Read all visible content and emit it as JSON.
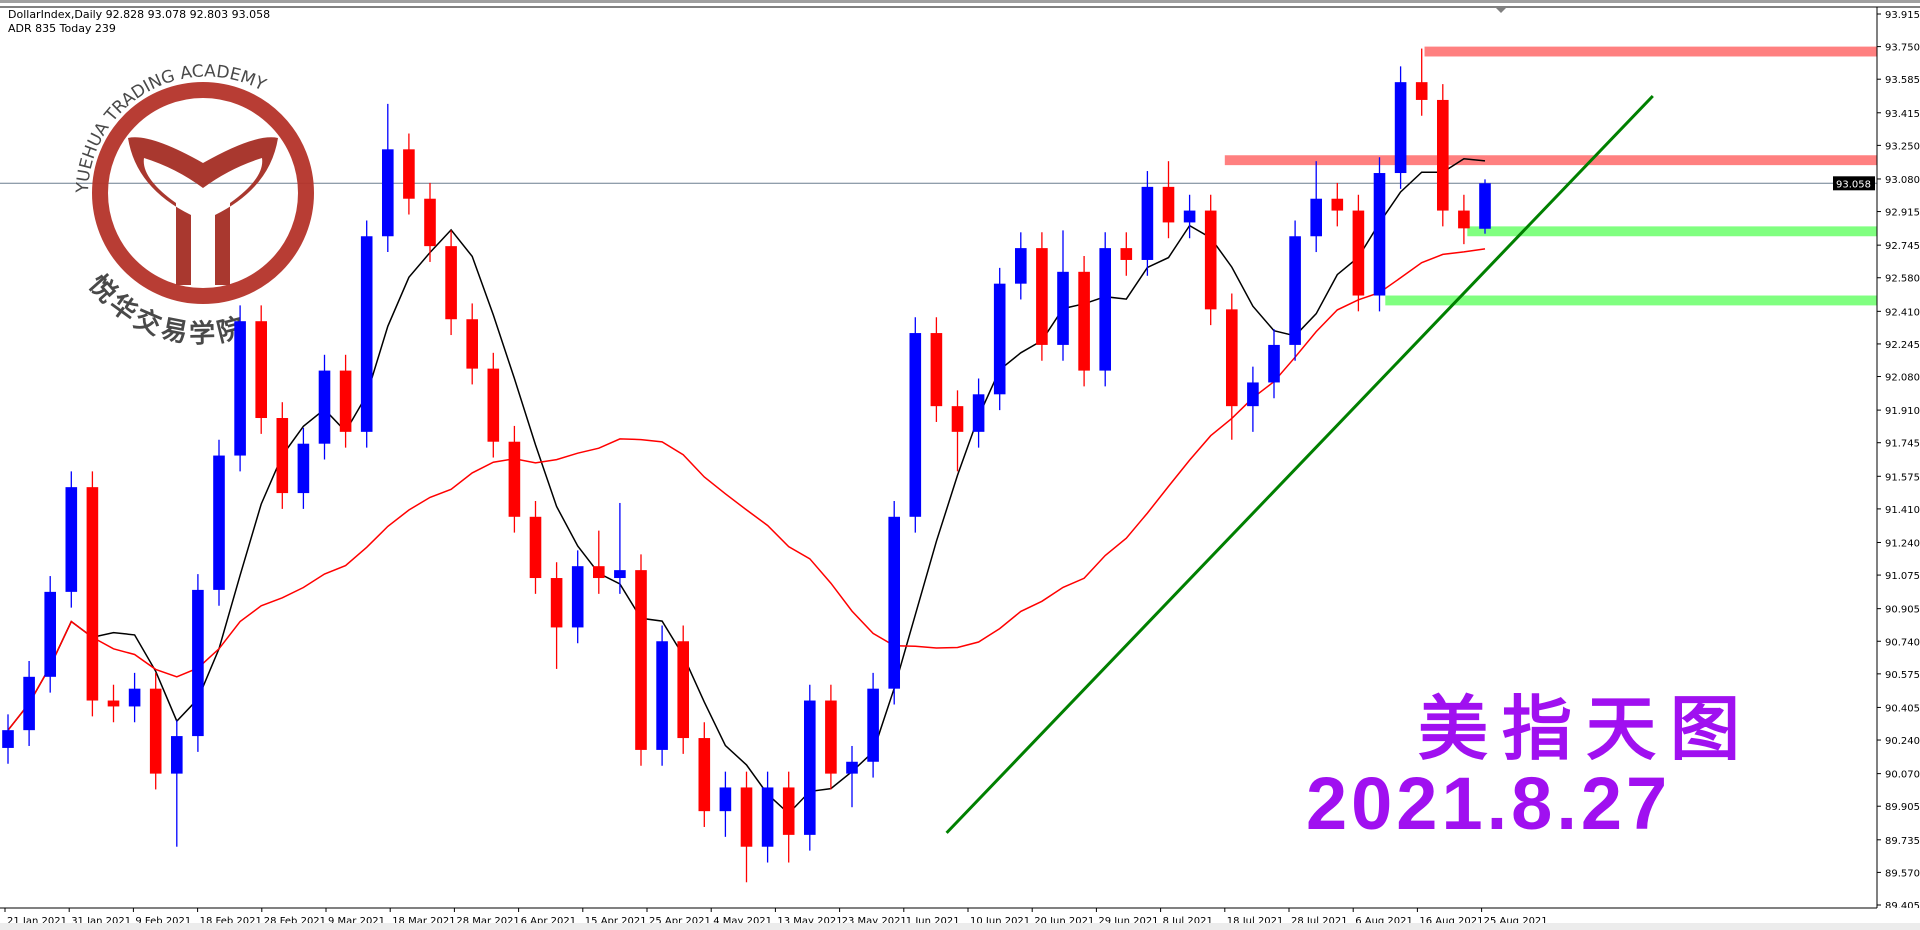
{
  "header": {
    "symbol_line": "DollarIndex,Daily  92.828 93.078 92.803 93.058",
    "adr_line": "ADR 835  Today 239"
  },
  "logo": {
    "text_en": "YUEHUA TRADING ACADEMY",
    "text_cn": "悦华交易学院",
    "color": "#b5332a"
  },
  "overlay": {
    "title": "美指天图",
    "date": "2021.8.27",
    "color": "#a010f0"
  },
  "colors": {
    "bull": "#0000ff",
    "bear": "#ff0000",
    "ma_fast": "#000000",
    "ma_slow": "#ff0000",
    "resistance_zone": "#ff8080",
    "support_zone": "#80ff80",
    "trendline": "#008000",
    "price_line": "#6b7f8f"
  },
  "chart_data": {
    "type": "candlestick",
    "symbol": "DollarIndex",
    "timeframe": "Daily",
    "current_price": 93.058,
    "ylim": [
      89.405,
      93.915
    ],
    "y_ticks": [
      "93.915",
      "93.750",
      "93.585",
      "93.415",
      "93.250",
      "93.080",
      "92.915",
      "92.745",
      "92.580",
      "92.410",
      "92.245",
      "92.080",
      "91.910",
      "91.745",
      "91.575",
      "91.410",
      "91.240",
      "91.075",
      "90.905",
      "90.740",
      "90.575",
      "90.405",
      "90.240",
      "90.070",
      "89.905",
      "89.735",
      "89.570",
      "89.405"
    ],
    "x_ticks": [
      "21 Jan 2021",
      "31 Jan 2021",
      "9 Feb 2021",
      "18 Feb 2021",
      "28 Feb 2021",
      "9 Mar 2021",
      "18 Mar 2021",
      "28 Mar 2021",
      "6 Apr 2021",
      "15 Apr 2021",
      "25 Apr 2021",
      "4 May 2021",
      "13 May 2021",
      "23 May 2021",
      "1 Jun 2021",
      "10 Jun 2021",
      "20 Jun 2021",
      "29 Jun 2021",
      "8 Jul 2021",
      "18 Jul 2021",
      "28 Jul 2021",
      "6 Aug 2021",
      "16 Aug 2021",
      "25 Aug 2021"
    ],
    "grid": false,
    "ohlc": [
      [
        90.2,
        90.37,
        90.12,
        90.29
      ],
      [
        90.29,
        90.64,
        90.21,
        90.56
      ],
      [
        90.56,
        91.07,
        90.48,
        90.99
      ],
      [
        90.99,
        91.6,
        90.91,
        91.52
      ],
      [
        91.52,
        91.6,
        90.36,
        90.44
      ],
      [
        90.44,
        90.52,
        90.33,
        90.41
      ],
      [
        90.41,
        90.58,
        90.33,
        90.5
      ],
      [
        90.5,
        90.58,
        89.99,
        90.07
      ],
      [
        90.07,
        90.34,
        89.7,
        90.26
      ],
      [
        90.26,
        91.08,
        90.18,
        91.0
      ],
      [
        91.0,
        91.76,
        90.92,
        91.68
      ],
      [
        91.68,
        92.44,
        91.6,
        92.36
      ],
      [
        92.36,
        92.44,
        91.79,
        91.87
      ],
      [
        91.87,
        91.95,
        91.41,
        91.49
      ],
      [
        91.49,
        91.82,
        91.41,
        91.74
      ],
      [
        91.74,
        92.19,
        91.66,
        92.11
      ],
      [
        92.11,
        92.19,
        91.72,
        91.8
      ],
      [
        91.8,
        92.87,
        91.72,
        92.79
      ],
      [
        92.79,
        93.46,
        92.71,
        93.23
      ],
      [
        93.23,
        93.31,
        92.9,
        92.98
      ],
      [
        92.98,
        93.06,
        92.66,
        92.74
      ],
      [
        92.74,
        92.82,
        92.29,
        92.37
      ],
      [
        92.37,
        92.45,
        92.04,
        92.12
      ],
      [
        92.12,
        92.2,
        91.67,
        91.75
      ],
      [
        91.75,
        91.83,
        91.29,
        91.37
      ],
      [
        91.37,
        91.45,
        90.98,
        91.06
      ],
      [
        91.06,
        91.14,
        90.6,
        90.81
      ],
      [
        90.81,
        91.2,
        90.73,
        91.12
      ],
      [
        91.12,
        91.3,
        90.98,
        91.06
      ],
      [
        91.06,
        91.44,
        90.98,
        91.1
      ],
      [
        91.1,
        91.18,
        90.11,
        90.19
      ],
      [
        90.19,
        90.82,
        90.11,
        90.74
      ],
      [
        90.74,
        90.82,
        90.17,
        90.25
      ],
      [
        90.25,
        90.33,
        89.8,
        89.88
      ],
      [
        89.88,
        90.08,
        89.75,
        90.0
      ],
      [
        90.0,
        90.08,
        89.52,
        89.7
      ],
      [
        89.7,
        90.08,
        89.62,
        90.0
      ],
      [
        90.0,
        90.08,
        89.62,
        89.76
      ],
      [
        89.76,
        90.52,
        89.68,
        90.44
      ],
      [
        90.44,
        90.52,
        89.99,
        90.07
      ],
      [
        90.07,
        90.21,
        89.9,
        90.13
      ],
      [
        90.13,
        90.58,
        90.05,
        90.5
      ],
      [
        90.5,
        91.45,
        90.42,
        91.37
      ],
      [
        91.37,
        92.38,
        91.29,
        92.3
      ],
      [
        92.3,
        92.38,
        91.85,
        91.93
      ],
      [
        91.93,
        92.01,
        91.6,
        91.8
      ],
      [
        91.8,
        92.07,
        91.72,
        91.99
      ],
      [
        91.99,
        92.63,
        91.91,
        92.55
      ],
      [
        92.55,
        92.81,
        92.47,
        92.73
      ],
      [
        92.73,
        92.81,
        92.16,
        92.24
      ],
      [
        92.24,
        92.82,
        92.16,
        92.61
      ],
      [
        92.61,
        92.69,
        92.03,
        92.11
      ],
      [
        92.11,
        92.81,
        92.03,
        92.73
      ],
      [
        92.73,
        92.81,
        92.59,
        92.67
      ],
      [
        92.67,
        93.12,
        92.59,
        93.04
      ],
      [
        93.04,
        93.17,
        92.78,
        92.86
      ],
      [
        92.86,
        93.0,
        92.78,
        92.92
      ],
      [
        92.92,
        93.0,
        92.34,
        92.42
      ],
      [
        92.42,
        92.5,
        91.76,
        91.93
      ],
      [
        91.93,
        92.13,
        91.8,
        92.05
      ],
      [
        92.05,
        92.32,
        91.97,
        92.24
      ],
      [
        92.24,
        92.87,
        92.16,
        92.79
      ],
      [
        92.79,
        93.17,
        92.71,
        92.98
      ],
      [
        92.98,
        93.06,
        92.84,
        92.92
      ],
      [
        92.92,
        93.0,
        92.41,
        92.49
      ],
      [
        92.49,
        93.19,
        92.41,
        93.11
      ],
      [
        93.11,
        93.65,
        93.03,
        93.57
      ],
      [
        93.57,
        93.74,
        93.4,
        93.48
      ],
      [
        93.48,
        93.56,
        92.84,
        92.92
      ],
      [
        92.92,
        93.0,
        92.75,
        92.83
      ],
      [
        92.828,
        93.078,
        92.803,
        93.058
      ]
    ],
    "moving_averages": [
      {
        "color": "#000000",
        "period": 5
      },
      {
        "color": "#ff0000",
        "period": 22
      }
    ],
    "zones": [
      {
        "kind": "resistance",
        "from_date": "17 Aug 2021",
        "price": [
          93.7,
          93.75
        ]
      },
      {
        "kind": "resistance",
        "from_date": "18 Jul 2021",
        "price": [
          93.15,
          93.2
        ]
      },
      {
        "kind": "support",
        "from_date": "23 Aug 2021",
        "price": [
          92.79,
          92.84
        ]
      },
      {
        "kind": "support",
        "from_date": "11 Aug 2021",
        "price": [
          92.44,
          92.49
        ]
      }
    ],
    "trendline": {
      "start": {
        "date": "7 Jun 2021",
        "price": 89.77
      },
      "end": {
        "date": "18 Sep 2021",
        "price": 93.5
      }
    }
  }
}
